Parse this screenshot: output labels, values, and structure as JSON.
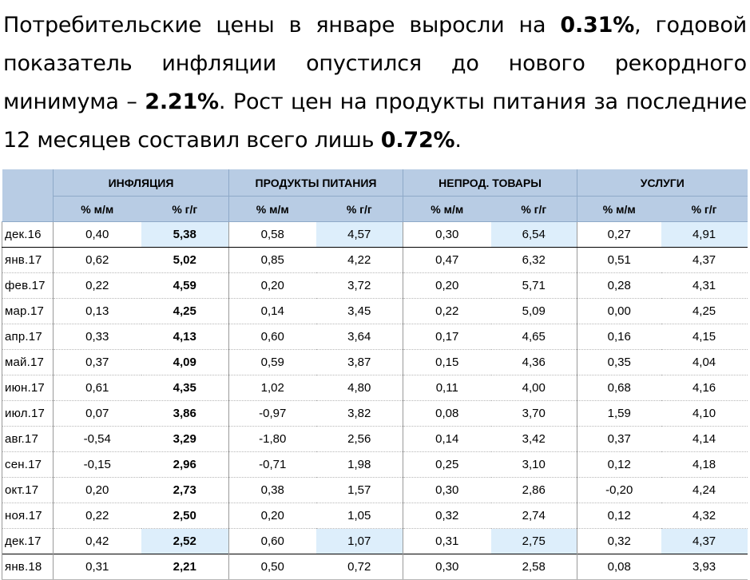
{
  "headline": {
    "p1": "Потребительские цены в январе выросли на ",
    "b1": "0.31%",
    "p2": ", годовой показатель инфляции опустился до нового рекордного минимума – ",
    "b2": "2.21%",
    "p3": ". Рост цен на продукты питания за последние 12 месяцев составил всего лишь ",
    "b3": "0.72%",
    "p4": "."
  },
  "table": {
    "groups": [
      "ИНФЛЯЦИЯ",
      "ПРОДУКТЫ ПИТАНИЯ",
      "НЕПРОД. ТОВАРЫ",
      "УСЛУГИ"
    ],
    "subheaders": [
      "% м/м",
      "% г/г",
      "% м/м",
      "% г/г",
      "% м/м",
      "% г/г",
      "% м/м",
      "% г/г"
    ],
    "rows": [
      {
        "month": "дек.16",
        "values": [
          "0,40",
          "5,38",
          "0,58",
          "4,57",
          "0,30",
          "6,54",
          "0,27",
          "4,91"
        ]
      },
      {
        "month": "янв.17",
        "values": [
          "0,62",
          "5,02",
          "0,85",
          "4,22",
          "0,47",
          "6,32",
          "0,51",
          "4,37"
        ]
      },
      {
        "month": "фев.17",
        "values": [
          "0,22",
          "4,59",
          "0,20",
          "3,72",
          "0,20",
          "5,71",
          "0,28",
          "4,31"
        ]
      },
      {
        "month": "мар.17",
        "values": [
          "0,13",
          "4,25",
          "0,14",
          "3,45",
          "0,22",
          "5,09",
          "0,00",
          "4,25"
        ]
      },
      {
        "month": "апр.17",
        "values": [
          "0,33",
          "4,13",
          "0,60",
          "3,64",
          "0,17",
          "4,65",
          "0,16",
          "4,15"
        ]
      },
      {
        "month": "май.17",
        "values": [
          "0,37",
          "4,09",
          "0,59",
          "3,87",
          "0,15",
          "4,36",
          "0,35",
          "4,04"
        ]
      },
      {
        "month": "июн.17",
        "values": [
          "0,61",
          "4,35",
          "1,02",
          "4,80",
          "0,11",
          "4,00",
          "0,68",
          "4,16"
        ]
      },
      {
        "month": "июл.17",
        "values": [
          "0,07",
          "3,86",
          "-0,97",
          "3,82",
          "0,08",
          "3,70",
          "1,59",
          "4,10"
        ]
      },
      {
        "month": "авг.17",
        "values": [
          "-0,54",
          "3,29",
          "-1,80",
          "2,56",
          "0,14",
          "3,42",
          "0,37",
          "4,14"
        ]
      },
      {
        "month": "сен.17",
        "values": [
          "-0,15",
          "2,96",
          "-0,71",
          "1,98",
          "0,25",
          "3,10",
          "0,12",
          "4,18"
        ]
      },
      {
        "month": "окт.17",
        "values": [
          "0,20",
          "2,73",
          "0,38",
          "1,57",
          "0,30",
          "2,86",
          "-0,20",
          "4,24"
        ]
      },
      {
        "month": "ноя.17",
        "values": [
          "0,22",
          "2,50",
          "0,20",
          "1,05",
          "0,32",
          "2,74",
          "0,12",
          "4,32"
        ]
      },
      {
        "month": "дек.17",
        "values": [
          "0,42",
          "2,52",
          "0,60",
          "1,07",
          "0,31",
          "2,75",
          "0,32",
          "4,37"
        ]
      },
      {
        "month": "янв.18",
        "values": [
          "0,31",
          "2,21",
          "0,50",
          "0,72",
          "0,30",
          "2,58",
          "0,08",
          "3,93"
        ]
      }
    ]
  },
  "colors": {
    "header_bg": "#b8cce4",
    "highlight_bg": "#ddeefb"
  }
}
